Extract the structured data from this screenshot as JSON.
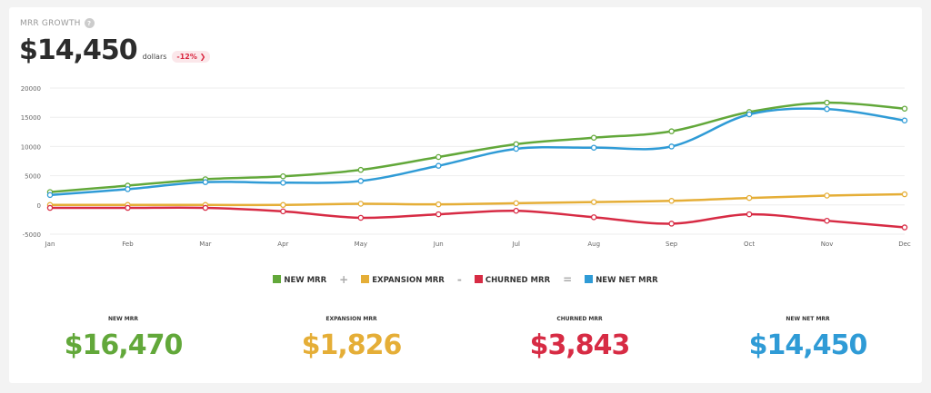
{
  "header": {
    "title": "MRR GROWTH",
    "help_icon": "?",
    "value": "$14,450",
    "unit": "dollars",
    "change": "-12% ❯"
  },
  "chart_data": {
    "type": "line",
    "categories": [
      "Jan",
      "Feb",
      "Mar",
      "Apr",
      "May",
      "Jun",
      "Jul",
      "Aug",
      "Sep",
      "Oct",
      "Nov",
      "Dec"
    ],
    "ylim": [
      -5000,
      20000
    ],
    "yticks": [
      -5000,
      0,
      5000,
      10000,
      15000,
      20000
    ],
    "grid": true,
    "legend_position": "bottom",
    "series": [
      {
        "name": "NEW MRR",
        "color": "#62a83a",
        "values": [
          2200,
          3300,
          4400,
          4900,
          6000,
          8200,
          10400,
          11500,
          12600,
          15900,
          17500,
          16470
        ]
      },
      {
        "name": "EXPANSION MRR",
        "color": "#e5ae37",
        "values": [
          0,
          0,
          0,
          0,
          200,
          100,
          300,
          500,
          700,
          1200,
          1600,
          1826
        ]
      },
      {
        "name": "CHURNED MRR",
        "color": "#d72b44",
        "values": [
          -500,
          -500,
          -500,
          -1100,
          -2200,
          -1600,
          -1000,
          -2100,
          -3200,
          -1600,
          -2700,
          -3843
        ]
      },
      {
        "name": "NEW NET MRR",
        "color": "#2f9bd6",
        "values": [
          1700,
          2700,
          3900,
          3800,
          4100,
          6700,
          9600,
          9800,
          10000,
          15500,
          16400,
          14450
        ]
      }
    ]
  },
  "legend": {
    "ops": [
      "+",
      "-",
      "="
    ]
  },
  "stats": [
    {
      "label": "NEW MRR",
      "value": "$16,470",
      "color": "#62a83a"
    },
    {
      "label": "EXPANSION MRR",
      "value": "$1,826",
      "color": "#e5ae37"
    },
    {
      "label": "CHURNED MRR",
      "value": "$3,843",
      "color": "#d72b44"
    },
    {
      "label": "NEW NET MRR",
      "value": "$14,450",
      "color": "#2f9bd6"
    }
  ]
}
